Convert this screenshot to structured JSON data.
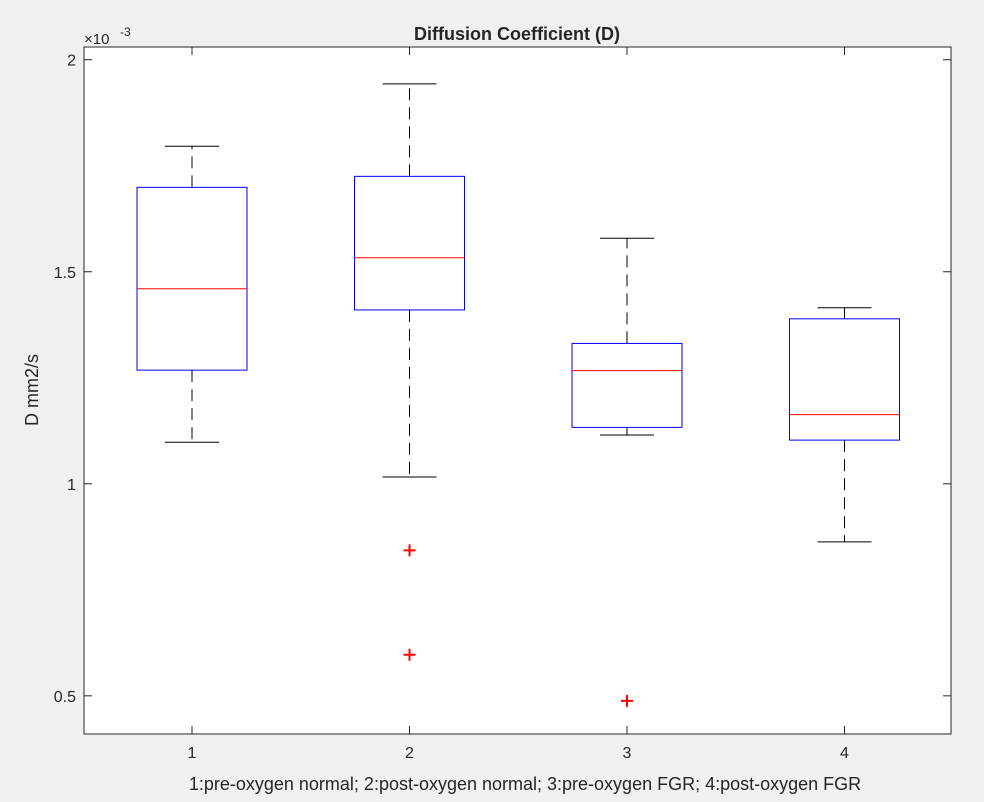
{
  "chart_data": {
    "type": "boxplot",
    "title": "Diffusion Coefficient (D)",
    "xlabel": "1:pre-oxygen normal; 2:post-oxygen normal; 3:pre-oxygen FGR; 4:post-oxygen FGR",
    "ylabel": "D mm2/s",
    "exponent_base": "×10",
    "exponent_power": "-3",
    "categories": [
      "1",
      "2",
      "3",
      "4"
    ],
    "ylim": [
      0.41,
      2.03
    ],
    "yticks": [
      0.5,
      1,
      1.5,
      2
    ],
    "ytick_labels": [
      "0.5",
      "1",
      "1.5",
      "2"
    ],
    "series": [
      {
        "name": "1",
        "whisker_low": 1.098,
        "q1": 1.268,
        "median": 1.46,
        "q3": 1.699,
        "whisker_high": 1.796,
        "outliers": []
      },
      {
        "name": "2",
        "whisker_low": 1.016,
        "q1": 1.41,
        "median": 1.533,
        "q3": 1.725,
        "whisker_high": 1.943,
        "outliers": [
          0.843,
          0.597
        ]
      },
      {
        "name": "3",
        "whisker_low": 1.115,
        "q1": 1.133,
        "median": 1.267,
        "q3": 1.331,
        "whisker_high": 1.579,
        "outliers": [
          0.488
        ]
      },
      {
        "name": "4",
        "whisker_low": 0.863,
        "q1": 1.103,
        "median": 1.163,
        "q3": 1.389,
        "whisker_high": 1.415,
        "outliers": []
      }
    ],
    "colors": {
      "box": "#0000ff",
      "median": "#ff0000",
      "whisker": "#000000",
      "outlier": "#ff0000",
      "axes": "#262626",
      "plot_bg": "#ffffff"
    },
    "grid": false
  }
}
